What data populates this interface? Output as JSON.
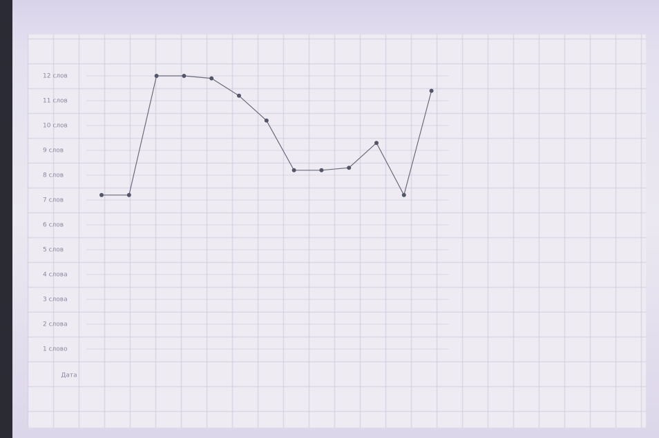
{
  "chart_data": {
    "type": "line",
    "x_label": "Дата",
    "categories": [
      null,
      null,
      null,
      null,
      null,
      null,
      null,
      null,
      null,
      null,
      null,
      null,
      null
    ],
    "series": [
      {
        "name": null,
        "color": "#6a6a7a",
        "values": [
          7.2,
          7.2,
          12,
          12,
          11.9,
          11.2,
          10.2,
          8.2,
          8.2,
          8.3,
          9.3,
          7.2,
          11.4
        ]
      }
    ],
    "ylim": [
      0.5,
      12.5
    ],
    "yticks": [
      {
        "value": 1,
        "label": "1 слово"
      },
      {
        "value": 2,
        "label": "2 слова"
      },
      {
        "value": 3,
        "label": "3 слова"
      },
      {
        "value": 4,
        "label": "4 слова"
      },
      {
        "value": 5,
        "label": "5 слов"
      },
      {
        "value": 6,
        "label": "6 слов"
      },
      {
        "value": 7,
        "label": "7 слов"
      },
      {
        "value": 8,
        "label": "8 слов"
      },
      {
        "value": 9,
        "label": "9 слов"
      },
      {
        "value": 10,
        "label": "10 слов"
      },
      {
        "value": 11,
        "label": "11 слов"
      },
      {
        "value": 12,
        "label": "12 слов"
      }
    ],
    "grid": true
  }
}
